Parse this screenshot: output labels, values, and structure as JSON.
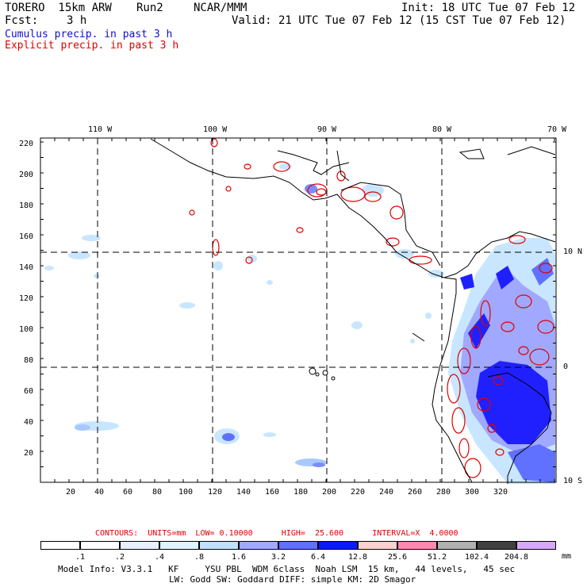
{
  "header": {
    "model": "TORERO  15km ARW",
    "run": "Run2",
    "center": "NCAR/MMM",
    "init": "Init: 18 UTC Tue 07 Feb 12",
    "fcst_label": "Fcst:",
    "fcst_hours": "3 h",
    "valid": "Valid: 21 UTC Tue 07 Feb 12 (15 CST Tue 07 Feb 12)",
    "legend_cumulus": "Cumulus precip. in past 3 h",
    "legend_explicit": "Explicit precip. in past 3 h"
  },
  "map": {
    "lon_labels": [
      "110 W",
      "100 W",
      "90 W",
      "80 W",
      "70 W"
    ],
    "lat_labels": [
      "10 N",
      "0",
      "10 S"
    ],
    "grid_y_labels": [
      "20",
      "40",
      "60",
      "80",
      "100",
      "120",
      "140",
      "160",
      "180",
      "200",
      "220"
    ],
    "grid_x_labels": [
      "20",
      "40",
      "60",
      "80",
      "100",
      "120",
      "140",
      "160",
      "180",
      "200",
      "220",
      "240",
      "260",
      "280",
      "300",
      "320"
    ],
    "colors": {
      "cumulus_light": "#c8e6ff",
      "cumulus_mid": "#7a8cff",
      "cumulus_dark": "#2020ff",
      "explicit": "#e00000",
      "coast": "#000000"
    }
  },
  "contours": {
    "text": "CONTOURS:  UNITS=mm  LOW= 0.10000      HIGH=  25.600      INTERVAL=X  4.0000"
  },
  "colorbar": {
    "labels": [
      ".1",
      ".2",
      ".4",
      ".8",
      "1.6",
      "3.2",
      "6.4",
      "12.8",
      "25.6",
      "51.2",
      "102.4",
      "204.8"
    ],
    "unit": "mm",
    "colors": [
      "#ffffff",
      "#ffffff",
      "#e6f0ff",
      "#dff4ff",
      "#c0e0ff",
      "#a0a8ff",
      "#6070ff",
      "#0a1aff",
      "#ffd0d0",
      "#ff88b0",
      "#b0b0b0",
      "#404040",
      "#d8a8ff"
    ]
  },
  "model_info": {
    "line1": "Model Info: V3.3.1   KF     YSU PBL  WDM 6class  Noah LSM  15 km,   44 levels,   45 sec",
    "line2": "LW: Godd SW: Goddard DIFF: simple KM: 2D Smagor"
  }
}
